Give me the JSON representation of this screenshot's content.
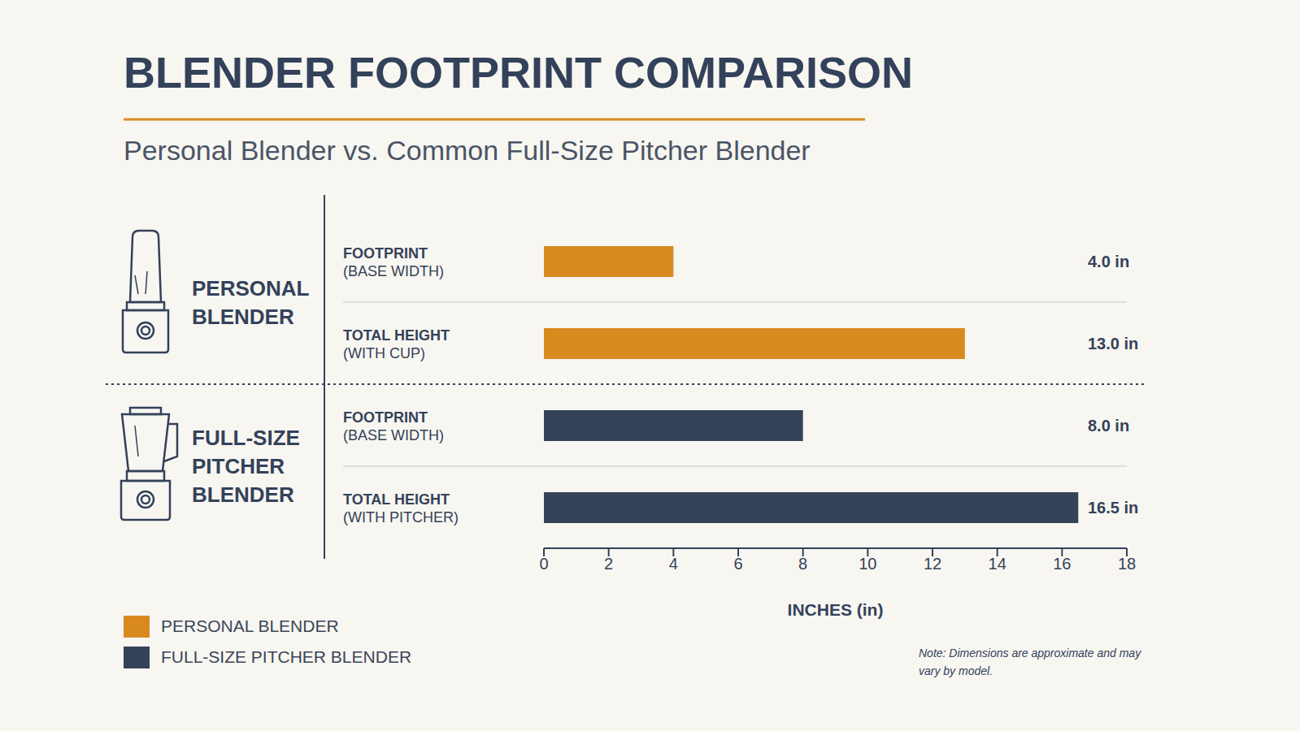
{
  "chart_data": {
    "type": "bar",
    "orientation": "horizontal",
    "title": "BLENDER FOOTPRINT COMPARISON",
    "subtitle": "Personal Blender vs. Common Full-Size Pitcher Blender",
    "group_labels": [
      "PERSONAL BLENDER",
      "FULL-SIZE PITCHER BLENDER"
    ],
    "categories": [
      "FOOTPRINT (BASE WIDTH)",
      "TOTAL HEIGHT (WITH CUP)",
      "FOOTPRINT (BASE WIDTH)",
      "TOTAL HEIGHT (WITH PITCHER)"
    ],
    "series": [
      {
        "name": "PERSONAL BLENDER",
        "color": "#d98a1f",
        "values": [
          4.0,
          13.0,
          null,
          null
        ],
        "value_labels": [
          "4.0 in",
          "13.0 in",
          null,
          null
        ]
      },
      {
        "name": "FULL-SIZE PITCHER BLENDER",
        "color": "#354257",
        "values": [
          null,
          null,
          8.0,
          16.5
        ],
        "value_labels": [
          null,
          null,
          "8.0 in",
          "16.5 in"
        ]
      }
    ],
    "x_label": "INCHES (in)",
    "xlim": [
      0,
      18
    ],
    "xticks": [
      0,
      2,
      4,
      6,
      8,
      10,
      12,
      14,
      16,
      18
    ],
    "grid": false,
    "legend": "bottom left",
    "data_labels": true,
    "annotations": [
      "Note: Dimensions are approximate and may vary by model."
    ]
  }
}
